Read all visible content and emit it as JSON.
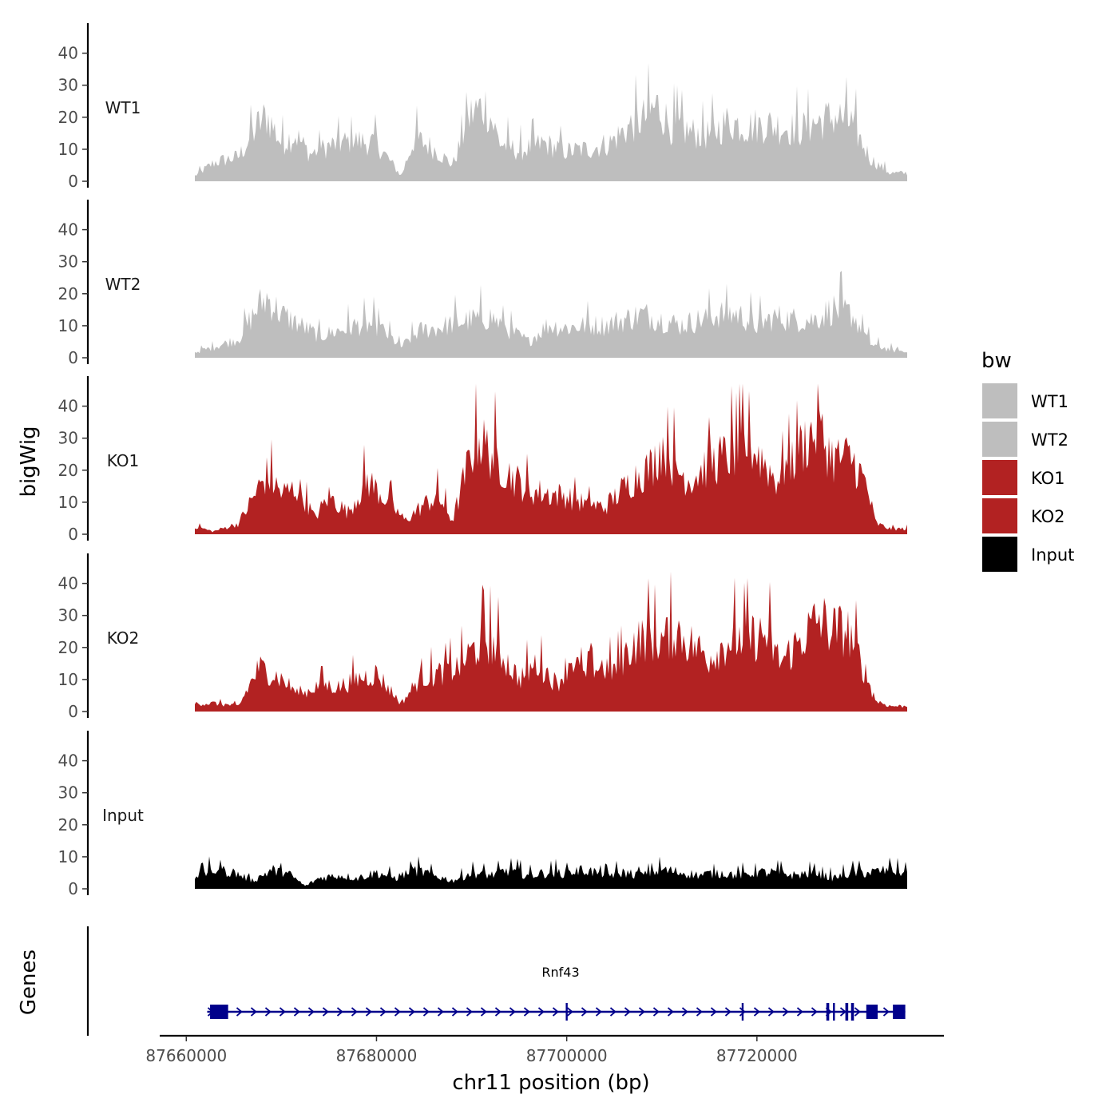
{
  "chart_data": {
    "type": "area",
    "chromosome": "chr11",
    "x_range": [
      87660900,
      87735800
    ],
    "y_range": [
      0,
      48
    ],
    "y_ticks": [
      0,
      10,
      20,
      30,
      40
    ],
    "y_tick_labels": [
      "0",
      "10",
      "20",
      "30",
      "40"
    ],
    "x_ticks": [
      87660000,
      87680000,
      87700000,
      87720000
    ],
    "x_tick_labels": [
      "87660000",
      "87680000",
      "87700000",
      "87720000"
    ],
    "ylabel": "bigWig",
    "genes_label": "Genes",
    "xlabel": "chr11 position (bp)",
    "legend": {
      "title": "bw",
      "items": [
        {
          "label": "WT1",
          "color": "#bebebe"
        },
        {
          "label": "WT2",
          "color": "#bebebe"
        },
        {
          "label": "KO1",
          "color": "#b22222"
        },
        {
          "label": "KO2",
          "color": "#b22222"
        },
        {
          "label": "Input",
          "color": "#000000"
        }
      ]
    },
    "series": [
      {
        "name": "WT1",
        "color": "#bebebe",
        "x": [
          87660900,
          87663000,
          87665500,
          87667600,
          87668500,
          87670000,
          87671500,
          87673000,
          87675000,
          87677500,
          87680000,
          87682600,
          87684000,
          87686000,
          87688000,
          87690000,
          87691500,
          87693000,
          87695000,
          87697500,
          87700000,
          87702500,
          87704500,
          87706500,
          87708500,
          87709500,
          87711000,
          87713000,
          87715000,
          87717000,
          87719000,
          87721000,
          87722500,
          87724500,
          87726500,
          87728500,
          87730000,
          87732000,
          87734000,
          87735800
        ],
        "y": [
          2,
          7,
          9,
          21,
          24,
          14,
          17,
          10,
          13,
          15,
          14,
          2,
          16,
          12,
          6,
          25,
          28,
          14,
          11,
          14,
          11,
          12,
          14,
          20,
          24,
          28,
          20,
          18,
          17,
          22,
          20,
          21,
          20,
          19,
          22,
          24,
          21,
          8,
          3,
          3
        ]
      },
      {
        "name": "WT2",
        "color": "#bebebe",
        "x": [
          87660900,
          87663000,
          87665500,
          87667600,
          87668500,
          87670000,
          87672000,
          87674000,
          87676000,
          87678000,
          87680000,
          87682600,
          87684500,
          87686500,
          87688500,
          87690000,
          87692000,
          87694000,
          87696000,
          87698000,
          87700000,
          87702000,
          87704000,
          87706000,
          87708000,
          87710000,
          87712000,
          87714000,
          87716000,
          87718000,
          87720000,
          87722000,
          87724000,
          87726000,
          87728000,
          87730000,
          87732000,
          87734000,
          87735800
        ],
        "y": [
          2,
          4,
          7,
          19,
          22,
          16,
          12,
          8,
          10,
          12,
          12,
          4,
          10,
          11,
          13,
          14,
          15,
          10,
          6,
          12,
          11,
          12,
          12,
          14,
          16,
          14,
          12,
          14,
          16,
          16,
          12,
          15,
          14,
          14,
          18,
          16,
          5,
          3,
          2
        ]
      },
      {
        "name": "KO1",
        "color": "#b22222",
        "x": [
          87660900,
          87662800,
          87665500,
          87667600,
          87668500,
          87670000,
          87671800,
          87673500,
          87675000,
          87677000,
          87679000,
          87681000,
          87683000,
          87685000,
          87686500,
          87688000,
          87689500,
          87690500,
          87692000,
          87694000,
          87696000,
          87698000,
          87700000,
          87702000,
          87704000,
          87706000,
          87707500,
          87709000,
          87710000,
          87711500,
          87713000,
          87715000,
          87717000,
          87719000,
          87720500,
          87722000,
          87724000,
          87725500,
          87726500,
          87728000,
          87730000,
          87731500,
          87732500,
          87734000,
          87735800
        ],
        "y": [
          3,
          1,
          4,
          17,
          22,
          15,
          17,
          6,
          14,
          8,
          20,
          13,
          5,
          11,
          14,
          5,
          24,
          36,
          30,
          22,
          16,
          15,
          14,
          11,
          10,
          17,
          22,
          25,
          33,
          24,
          20,
          26,
          29,
          33,
          28,
          20,
          29,
          36,
          38,
          28,
          28,
          18,
          4,
          2,
          2
        ]
      },
      {
        "name": "KO2",
        "color": "#b22222",
        "x": [
          87660900,
          87663000,
          87665500,
          87667600,
          87668500,
          87670000,
          87672000,
          87674000,
          87676000,
          87678000,
          87680000,
          87682600,
          87684500,
          87686500,
          87688500,
          87690000,
          87691500,
          87693000,
          87695000,
          87697000,
          87699000,
          87700500,
          87702000,
          87703500,
          87705000,
          87707000,
          87708500,
          87710000,
          87711500,
          87713000,
          87715000,
          87717000,
          87719000,
          87721000,
          87722500,
          87724000,
          87725500,
          87726500,
          87728000,
          87729500,
          87731000,
          87732500,
          87734000,
          87735800
        ],
        "y": [
          3,
          3,
          2,
          16,
          15,
          12,
          6,
          10,
          9,
          12,
          14,
          3,
          12,
          14,
          16,
          22,
          27,
          22,
          12,
          18,
          10,
          20,
          12,
          17,
          15,
          25,
          28,
          26,
          30,
          25,
          20,
          26,
          27,
          28,
          18,
          24,
          30,
          34,
          30,
          30,
          18,
          4,
          2,
          2
        ]
      },
      {
        "name": "Input",
        "color": "#000000",
        "x": [
          87660900,
          87663000,
          87665000,
          87667000,
          87669000,
          87671000,
          87672500,
          87674000,
          87676000,
          87678000,
          87680000,
          87682000,
          87684000,
          87686000,
          87688000,
          87690000,
          87692000,
          87694000,
          87696000,
          87698000,
          87700000,
          87702000,
          87704000,
          87706000,
          87708000,
          87710000,
          87712000,
          87714000,
          87716000,
          87718000,
          87720000,
          87722000,
          87724000,
          87726000,
          87728000,
          87730000,
          87732000,
          87734000,
          87735800
        ],
        "y": [
          5,
          7,
          6,
          3,
          7,
          5,
          1,
          4,
          5,
          4,
          6,
          4,
          7,
          5,
          3,
          6,
          5,
          7,
          5,
          6,
          6,
          7,
          5,
          6,
          5,
          7,
          6,
          5,
          6,
          5,
          6,
          6,
          5,
          6,
          4,
          6,
          6,
          7,
          6
        ]
      }
    ],
    "gene": {
      "name": "Rnf43",
      "start": 87662200,
      "end": 87735600,
      "strand": "+",
      "exons": [
        [
          87662500,
          87664400
        ],
        [
          87699900,
          87700100
        ],
        [
          87718400,
          87718600
        ],
        [
          87727300,
          87727600
        ],
        [
          87728000,
          87728200
        ],
        [
          87729300,
          87729600
        ],
        [
          87729900,
          87730200
        ],
        [
          87731500,
          87732700
        ],
        [
          87734300,
          87735600
        ]
      ]
    }
  }
}
